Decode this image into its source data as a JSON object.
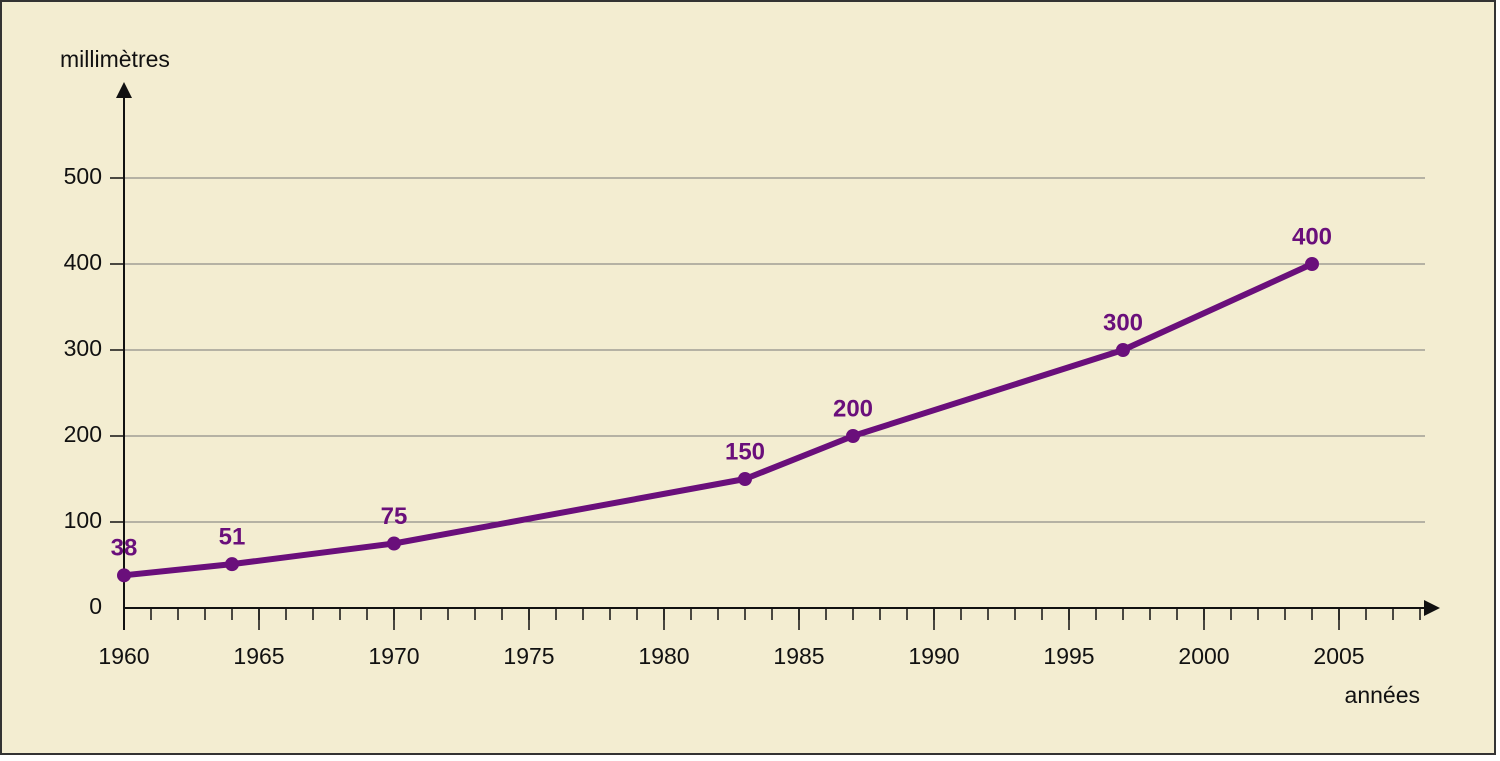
{
  "chart_data": {
    "type": "line",
    "y_label": "millimètres",
    "x_label": "années",
    "x": [
      1960,
      1964,
      1970,
      1983,
      1987,
      1997,
      2004
    ],
    "series": [
      {
        "name": null,
        "color": "#6a0f7b",
        "values": [
          38,
          51,
          75,
          150,
          200,
          300,
          400
        ]
      }
    ],
    "xlim": [
      1960,
      2008
    ],
    "xticks": [
      1960,
      1965,
      1970,
      1975,
      1980,
      1985,
      1990,
      1995,
      2000,
      2005
    ],
    "minor_xticks": true,
    "ylim": [
      0,
      600
    ],
    "yticks": [
      0,
      100,
      200,
      300,
      400,
      500
    ],
    "grid": true,
    "data_labels": true
  }
}
